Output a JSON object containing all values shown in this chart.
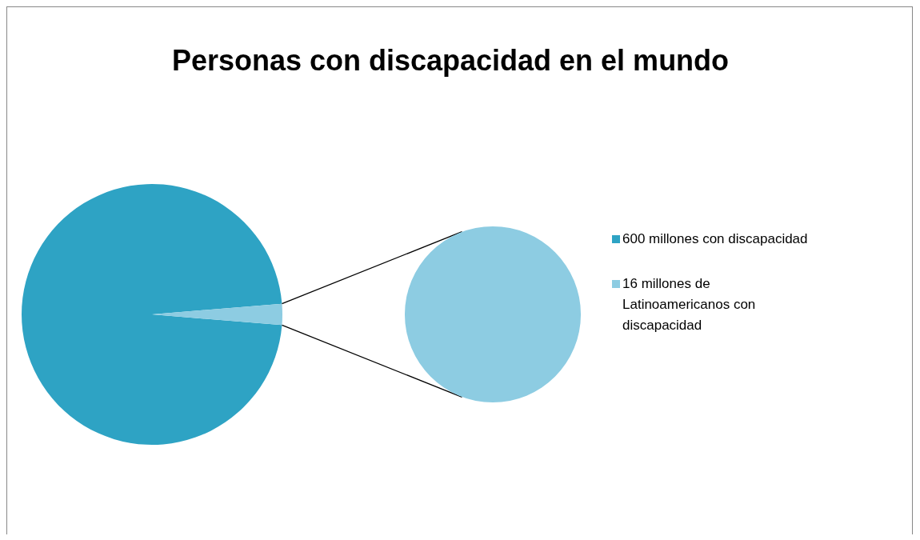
{
  "chart_data": {
    "type": "pie",
    "title": "Personas con discapacidad en el mundo",
    "categories": [
      "600 millones con discapacidad",
      "16 millones de Latinoamericanos con discapacidad"
    ],
    "values": [
      600,
      16
    ],
    "colors": [
      "#2ea3c4",
      "#8dcce2"
    ],
    "legend": "right"
  }
}
